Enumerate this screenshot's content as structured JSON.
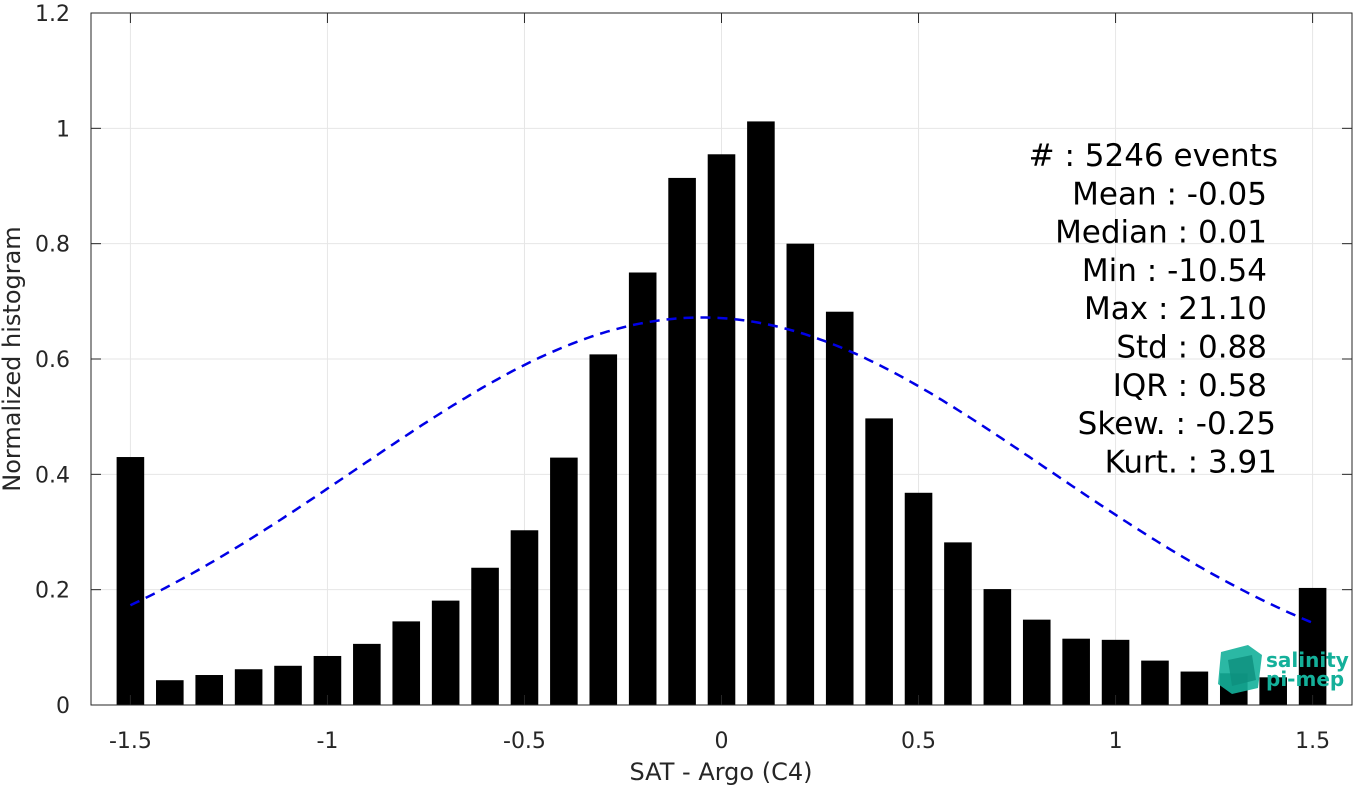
{
  "chart_data": {
    "type": "bar",
    "xlabel": "SAT - Argo (C4)",
    "ylabel": "Normalized histogram",
    "xlim": [
      -1.6,
      1.6
    ],
    "ylim": [
      0,
      1.2
    ],
    "grid": true,
    "bar_color": "#000000",
    "fit_color": "#0000e6",
    "xticks": [
      -1.5,
      -1,
      -0.5,
      0,
      0.5,
      1,
      1.5
    ],
    "xtick_labels": [
      "-1.5",
      "-1",
      "-0.5",
      "0",
      "0.5",
      "1",
      "1.5"
    ],
    "yticks": [
      0,
      0.2,
      0.4,
      0.6,
      0.8,
      1,
      1.2
    ],
    "ytick_labels": [
      "0",
      "0.2",
      "0.4",
      "0.6",
      "0.8",
      "1",
      "1.2"
    ],
    "bin_centers": [
      -1.5,
      -1.4,
      -1.3,
      -1.2,
      -1.1,
      -1.0,
      -0.9,
      -0.8,
      -0.7,
      -0.6,
      -0.5,
      -0.4,
      -0.3,
      -0.2,
      -0.1,
      0.0,
      0.1,
      0.2,
      0.3,
      0.4,
      0.5,
      0.6,
      0.7,
      0.8,
      0.9,
      1.0,
      1.1,
      1.2,
      1.3,
      1.4,
      1.5
    ],
    "values": [
      0.43,
      0.043,
      0.052,
      0.062,
      0.068,
      0.085,
      0.106,
      0.145,
      0.181,
      0.238,
      0.303,
      0.429,
      0.608,
      0.75,
      0.914,
      0.955,
      1.012,
      0.8,
      0.682,
      0.497,
      0.368,
      0.282,
      0.201,
      0.148,
      0.115,
      0.113,
      0.077,
      0.058,
      0.055,
      0.048,
      0.203
    ],
    "fit": {
      "type": "gaussian-dashed",
      "mean": -0.05,
      "std": 0.88,
      "peak": 0.672
    },
    "annotations": [
      "#  : 5246 events",
      "Mean : -0.05",
      "Median : 0.01",
      "Min : -10.54",
      "Max : 21.10",
      "Std : 0.88",
      "IQR : 0.58",
      "Skew. : -0.25",
      "Kurt. : 3.91"
    ]
  },
  "logo": {
    "line1": "salinity",
    "line2": "pi-mep",
    "color": "#14b09a"
  }
}
